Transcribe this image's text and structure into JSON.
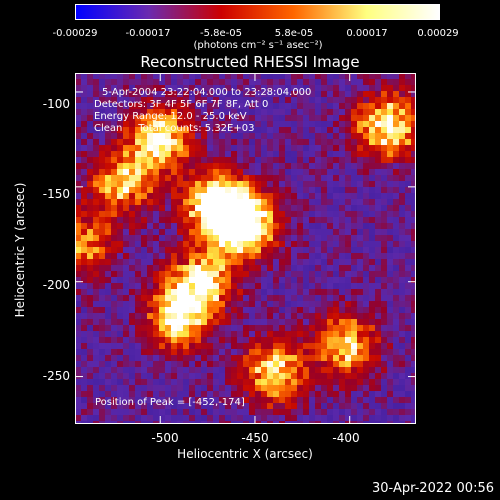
{
  "colorbar": {
    "ticks": [
      "-0.00029",
      "-0.00017",
      "-5.8e-05",
      "5.8e-05",
      "0.00017",
      "0.00029"
    ],
    "unit": "(photons cm⁻² s⁻¹ asec⁻²)"
  },
  "annotations": {
    "line1": "5-Apr-2004 23:22:04.000 to 23:28:04.000",
    "line2": "Detectors: 3F 4F 5F 6F 7F 8F, Att 0",
    "line3": "Energy Range: 12.0 - 25.0 keV",
    "line4": "Clean     Total counts: 5.32E+03",
    "peak": "Position of Peak = [-452,-174]"
  },
  "timestamp": "30-Apr-2022 00:56",
  "chart_data": {
    "type": "heatmap",
    "title": "Reconstructed RHESSI Image",
    "xlabel": "Heliocentric X (arcsec)",
    "ylabel": "Heliocentric Y (arcsec)",
    "xlim": [
      -545,
      -365
    ],
    "ylim": [
      -275,
      -90
    ],
    "x_ticks": [
      -500,
      -450,
      -400
    ],
    "y_ticks": [
      -100,
      -150,
      -200,
      -250
    ],
    "colorbar_range": [
      -0.00029,
      0.00029
    ],
    "colors": [
      "#0000ff",
      "#6a2ab0",
      "#cc0000",
      "#ff6600",
      "#ffff80",
      "#ffffff"
    ],
    "peak_position": [
      -452,
      -174
    ],
    "bright_sources": [
      {
        "x": -470,
        "y": -160,
        "intensity": 1.0
      },
      {
        "x": -455,
        "y": -170,
        "intensity": 0.95
      },
      {
        "x": -500,
        "y": -125,
        "intensity": 0.8
      },
      {
        "x": -490,
        "y": -218,
        "intensity": 0.8
      },
      {
        "x": -478,
        "y": -200,
        "intensity": 0.75
      },
      {
        "x": -380,
        "y": -118,
        "intensity": 0.8
      },
      {
        "x": -402,
        "y": -233,
        "intensity": 0.7
      },
      {
        "x": -440,
        "y": -248,
        "intensity": 0.7
      },
      {
        "x": -520,
        "y": -148,
        "intensity": 0.65
      },
      {
        "x": -540,
        "y": -180,
        "intensity": 0.55
      }
    ]
  }
}
